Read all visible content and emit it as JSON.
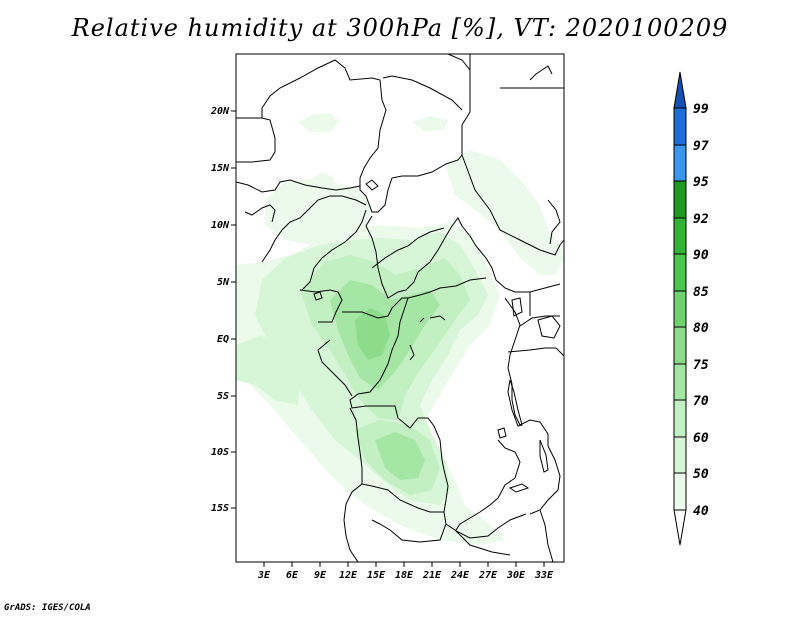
{
  "title": "Relative humidity at 300hPa [%], VT: 2020100209",
  "footer": "GrADS: IGES/COLA",
  "map": {
    "lon_range": [
      0,
      35
    ],
    "lat_range": [
      -20,
      24
    ],
    "lon_ticks": [
      "3E",
      "6E",
      "9E",
      "12E",
      "15E",
      "18E",
      "21E",
      "24E",
      "27E",
      "30E",
      "33E"
    ],
    "lat_ticks": [
      "20N",
      "15N",
      "10N",
      "5N",
      "EQ",
      "5S",
      "10S",
      "15S"
    ]
  },
  "colorbar": {
    "levels": [
      "40",
      "50",
      "60",
      "70",
      "75",
      "80",
      "85",
      "90",
      "92",
      "95",
      "97",
      "99"
    ],
    "colors": [
      "#ebfaeb",
      "#d7f5d7",
      "#c3f0c3",
      "#a5e6a5",
      "#8cdc8c",
      "#6ed26e",
      "#4bc84b",
      "#32b432",
      "#1e9b1e",
      "#0f820f",
      "#3c96eb",
      "#1e6ed7",
      "#1450b4"
    ]
  }
}
